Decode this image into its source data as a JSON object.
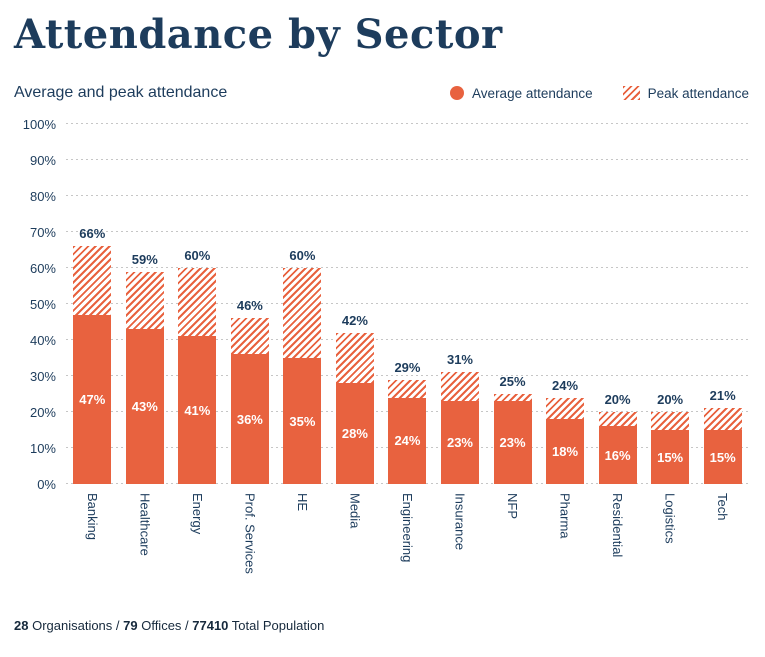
{
  "page": {
    "title": "Attendance by Sector",
    "subtitle": "Average and peak attendance"
  },
  "legend": {
    "average_label": "Average attendance",
    "peak_label": "Peak attendance"
  },
  "footer": {
    "segments": [
      {
        "text": "28",
        "bold": true
      },
      {
        "text": " Organisations / ",
        "bold": false
      },
      {
        "text": "79",
        "bold": true
      },
      {
        "text": " Offices / ",
        "bold": false
      },
      {
        "text": "77410",
        "bold": true
      },
      {
        "text": " Total Population",
        "bold": false
      }
    ]
  },
  "colors": {
    "accent": "#e8623f",
    "navy": "#1d3c5c",
    "grid": "#c6c6c6"
  },
  "chart_data": {
    "type": "bar",
    "subtype": "overlay-solid-plus-hatched-peak",
    "title": "Attendance by Sector",
    "subtitle": "Average and peak attendance",
    "categories": [
      "Banking",
      "Healthcare",
      "Energy",
      "Prof. Services",
      "HE",
      "Media",
      "Engineering",
      "Insurance",
      "NFP",
      "Pharma",
      "Residential",
      "Logistics",
      "Tech"
    ],
    "series": [
      {
        "name": "Average attendance",
        "style": "solid",
        "values": [
          47,
          43,
          41,
          36,
          35,
          28,
          24,
          23,
          23,
          18,
          16,
          15,
          15
        ]
      },
      {
        "name": "Peak attendance",
        "style": "hatched",
        "values": [
          66,
          59,
          60,
          46,
          60,
          42,
          29,
          31,
          25,
          24,
          20,
          20,
          21
        ]
      }
    ],
    "ylim": [
      0,
      100
    ],
    "yticks": [
      0,
      10,
      20,
      30,
      40,
      50,
      60,
      70,
      80,
      90,
      100
    ],
    "ytick_format": "{v}%",
    "grid": "dotted-horizontal",
    "legend_position": "top-right",
    "value_labels": {
      "average": "white-inside-bar",
      "peak": "bold-above-bar"
    }
  }
}
